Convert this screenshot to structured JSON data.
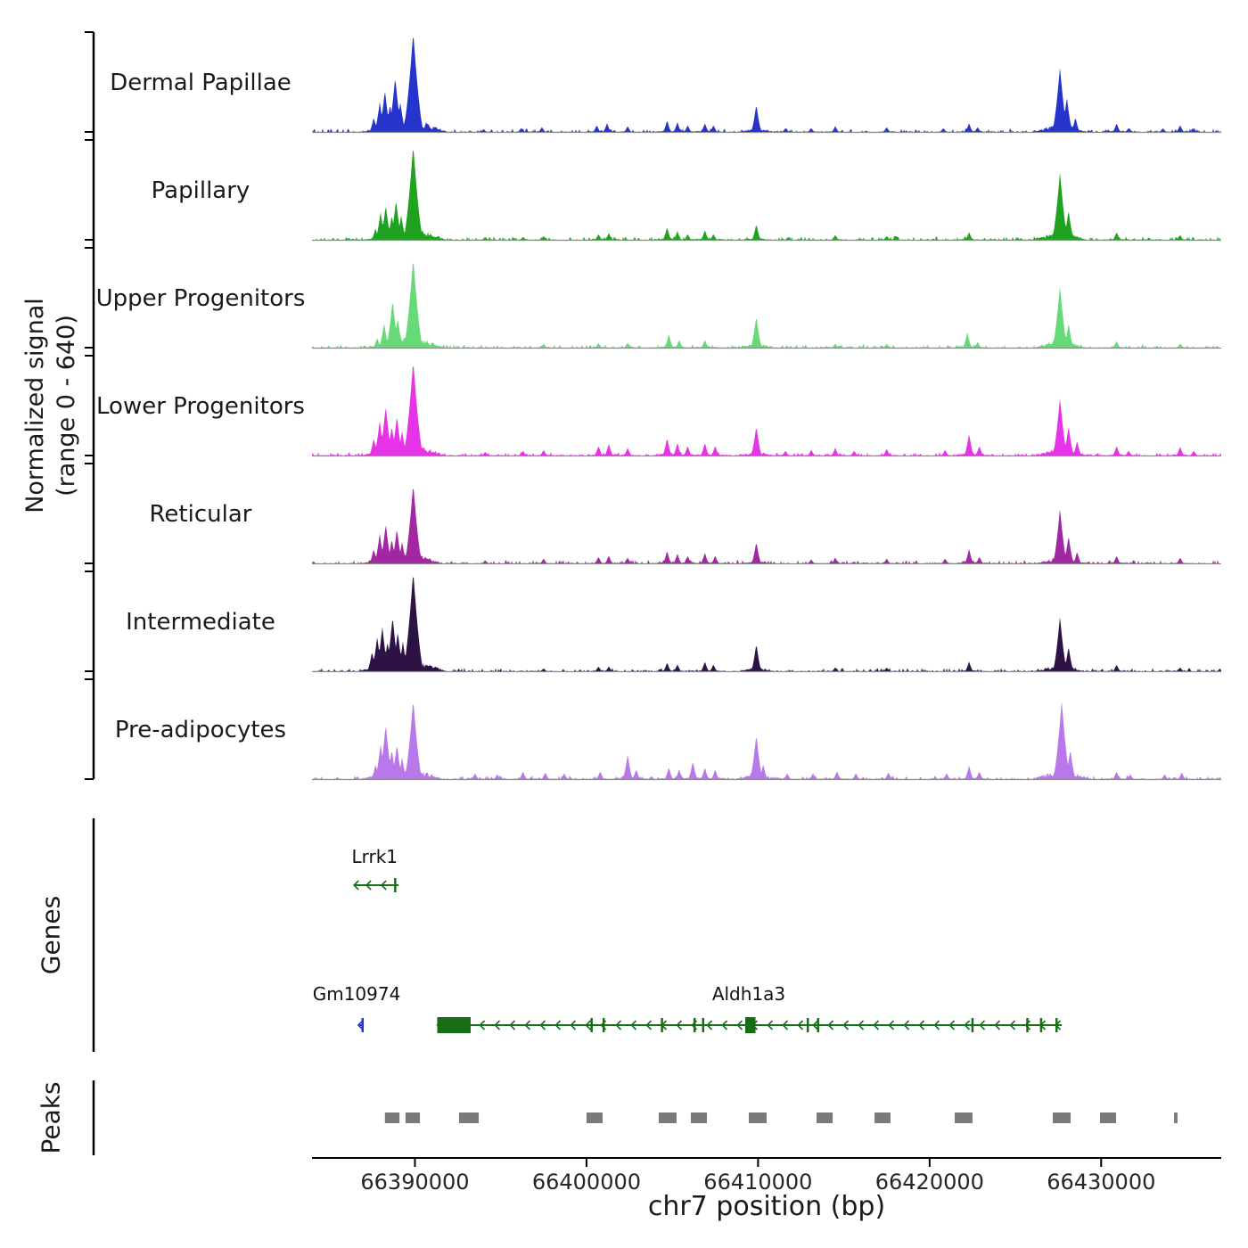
{
  "y_axis": {
    "line1": "Normalized signal",
    "line2": "(range 0 - 640)",
    "range": [
      0,
      640
    ]
  },
  "sections": {
    "genes": "Genes",
    "peaks": "Peaks"
  },
  "x_axis": {
    "title": "chr7 position (bp)",
    "ticks": [
      66390000,
      66400000,
      66410000,
      66420000,
      66430000
    ],
    "range": [
      66384000,
      66437000
    ]
  },
  "chart_data": {
    "type": "area",
    "subtype": "genome-signal-tracks",
    "xlabel": "chr7 position (bp)",
    "ylabel": "Normalized signal (range 0 - 640)",
    "x_range": [
      66384000,
      66437000
    ],
    "y_range": [
      0,
      640
    ],
    "height_unit": "fraction_of_ymax",
    "tracks": [
      {
        "name": "Dermal Papillae",
        "color": "#2534cd",
        "peaks": [
          [
            66387600,
            0.15
          ],
          [
            66387950,
            0.3
          ],
          [
            66388250,
            0.42
          ],
          [
            66388550,
            0.28
          ],
          [
            66388850,
            0.55
          ],
          [
            66389150,
            0.3
          ],
          [
            66389500,
            0.2
          ],
          [
            66389900,
            1.0
          ],
          [
            66390250,
            0.1
          ],
          [
            66394000,
            0.03
          ],
          [
            66396200,
            0.04
          ],
          [
            66397400,
            0.05
          ],
          [
            66400600,
            0.07
          ],
          [
            66401200,
            0.09
          ],
          [
            66402400,
            0.06
          ],
          [
            66404700,
            0.12
          ],
          [
            66405300,
            0.1
          ],
          [
            66405900,
            0.07
          ],
          [
            66406900,
            0.09
          ],
          [
            66407400,
            0.07
          ],
          [
            66409900,
            0.28
          ],
          [
            66411600,
            0.04
          ],
          [
            66413100,
            0.04
          ],
          [
            66414500,
            0.06
          ],
          [
            66417500,
            0.05
          ],
          [
            66420800,
            0.04
          ],
          [
            66422300,
            0.09
          ],
          [
            66422800,
            0.05
          ],
          [
            66427600,
            0.65
          ],
          [
            66428000,
            0.35
          ],
          [
            66428500,
            0.15
          ],
          [
            66430900,
            0.09
          ],
          [
            66431600,
            0.04
          ],
          [
            66433600,
            0.04
          ],
          [
            66434600,
            0.07
          ],
          [
            66435400,
            0.04
          ]
        ]
      },
      {
        "name": "Papillary",
        "color": "#1fa21f",
        "peaks": [
          [
            66387700,
            0.12
          ],
          [
            66388000,
            0.28
          ],
          [
            66388300,
            0.35
          ],
          [
            66388650,
            0.25
          ],
          [
            66388900,
            0.4
          ],
          [
            66389200,
            0.25
          ],
          [
            66389900,
            0.95
          ],
          [
            66390200,
            0.1
          ],
          [
            66394100,
            0.03
          ],
          [
            66396300,
            0.03
          ],
          [
            66397500,
            0.04
          ],
          [
            66400700,
            0.06
          ],
          [
            66401300,
            0.07
          ],
          [
            66404700,
            0.13
          ],
          [
            66405300,
            0.09
          ],
          [
            66405900,
            0.06
          ],
          [
            66406900,
            0.1
          ],
          [
            66407400,
            0.06
          ],
          [
            66409900,
            0.16
          ],
          [
            66414500,
            0.05
          ],
          [
            66417500,
            0.04
          ],
          [
            66422300,
            0.08
          ],
          [
            66427600,
            0.68
          ],
          [
            66428100,
            0.3
          ],
          [
            66430900,
            0.08
          ],
          [
            66434600,
            0.05
          ]
        ]
      },
      {
        "name": "Upper Progenitors",
        "color": "#67da78",
        "peaks": [
          [
            66387800,
            0.1
          ],
          [
            66388200,
            0.25
          ],
          [
            66388700,
            0.48
          ],
          [
            66389000,
            0.3
          ],
          [
            66389900,
            0.9
          ],
          [
            66397500,
            0.04
          ],
          [
            66400700,
            0.05
          ],
          [
            66402400,
            0.05
          ],
          [
            66404800,
            0.14
          ],
          [
            66405400,
            0.08
          ],
          [
            66406900,
            0.08
          ],
          [
            66409900,
            0.32
          ],
          [
            66414500,
            0.04
          ],
          [
            66417500,
            0.04
          ],
          [
            66422200,
            0.16
          ],
          [
            66422800,
            0.06
          ],
          [
            66427600,
            0.62
          ],
          [
            66428100,
            0.25
          ],
          [
            66430900,
            0.07
          ],
          [
            66434600,
            0.04
          ]
        ]
      },
      {
        "name": "Lower Progenitors",
        "color": "#e733e7",
        "peaks": [
          [
            66387600,
            0.18
          ],
          [
            66387950,
            0.35
          ],
          [
            66388300,
            0.5
          ],
          [
            66388650,
            0.3
          ],
          [
            66388950,
            0.4
          ],
          [
            66389250,
            0.25
          ],
          [
            66389900,
            0.95
          ],
          [
            66390300,
            0.12
          ],
          [
            66394100,
            0.04
          ],
          [
            66396300,
            0.05
          ],
          [
            66397500,
            0.06
          ],
          [
            66400700,
            0.1
          ],
          [
            66401300,
            0.12
          ],
          [
            66402400,
            0.08
          ],
          [
            66404700,
            0.18
          ],
          [
            66405300,
            0.13
          ],
          [
            66405900,
            0.1
          ],
          [
            66406900,
            0.13
          ],
          [
            66407500,
            0.1
          ],
          [
            66409900,
            0.3
          ],
          [
            66411600,
            0.05
          ],
          [
            66413100,
            0.06
          ],
          [
            66414500,
            0.08
          ],
          [
            66415600,
            0.05
          ],
          [
            66417500,
            0.07
          ],
          [
            66420900,
            0.06
          ],
          [
            66422300,
            0.22
          ],
          [
            66422900,
            0.1
          ],
          [
            66427600,
            0.58
          ],
          [
            66428100,
            0.3
          ],
          [
            66428600,
            0.15
          ],
          [
            66430900,
            0.1
          ],
          [
            66431600,
            0.05
          ],
          [
            66434600,
            0.09
          ],
          [
            66435400,
            0.05
          ]
        ]
      },
      {
        "name": "Reticular",
        "color": "#a227a2",
        "peaks": [
          [
            66387600,
            0.15
          ],
          [
            66387950,
            0.3
          ],
          [
            66388300,
            0.4
          ],
          [
            66388650,
            0.25
          ],
          [
            66388950,
            0.35
          ],
          [
            66389250,
            0.22
          ],
          [
            66389900,
            0.8
          ],
          [
            66390300,
            0.1
          ],
          [
            66394100,
            0.03
          ],
          [
            66397500,
            0.05
          ],
          [
            66400700,
            0.07
          ],
          [
            66401300,
            0.08
          ],
          [
            66402400,
            0.06
          ],
          [
            66404700,
            0.13
          ],
          [
            66405300,
            0.1
          ],
          [
            66405900,
            0.08
          ],
          [
            66406900,
            0.11
          ],
          [
            66407500,
            0.08
          ],
          [
            66409900,
            0.22
          ],
          [
            66413100,
            0.04
          ],
          [
            66414500,
            0.06
          ],
          [
            66417500,
            0.05
          ],
          [
            66420900,
            0.05
          ],
          [
            66422300,
            0.15
          ],
          [
            66422900,
            0.07
          ],
          [
            66427600,
            0.55
          ],
          [
            66428100,
            0.28
          ],
          [
            66428600,
            0.12
          ],
          [
            66430900,
            0.08
          ],
          [
            66434600,
            0.06
          ]
        ]
      },
      {
        "name": "Intermediate",
        "color": "#2c1245",
        "peaks": [
          [
            66387500,
            0.2
          ],
          [
            66387800,
            0.35
          ],
          [
            66388100,
            0.45
          ],
          [
            66388400,
            0.3
          ],
          [
            66388700,
            0.55
          ],
          [
            66389000,
            0.4
          ],
          [
            66389300,
            0.3
          ],
          [
            66389900,
            1.0
          ],
          [
            66390200,
            0.15
          ],
          [
            66397500,
            0.03
          ],
          [
            66400700,
            0.05
          ],
          [
            66401300,
            0.05
          ],
          [
            66404700,
            0.09
          ],
          [
            66405300,
            0.07
          ],
          [
            66406900,
            0.1
          ],
          [
            66407400,
            0.07
          ],
          [
            66409900,
            0.28
          ],
          [
            66414500,
            0.04
          ],
          [
            66417500,
            0.04
          ],
          [
            66422300,
            0.1
          ],
          [
            66427600,
            0.55
          ],
          [
            66428100,
            0.25
          ],
          [
            66430900,
            0.07
          ],
          [
            66434600,
            0.04
          ]
        ]
      },
      {
        "name": "Pre-adipocytes",
        "color": "#b878ea",
        "peaks": [
          [
            66387700,
            0.15
          ],
          [
            66388000,
            0.35
          ],
          [
            66388300,
            0.55
          ],
          [
            66388650,
            0.3
          ],
          [
            66388950,
            0.35
          ],
          [
            66389250,
            0.22
          ],
          [
            66389900,
            0.8
          ],
          [
            66393500,
            0.06
          ],
          [
            66394800,
            0.05
          ],
          [
            66396300,
            0.08
          ],
          [
            66397600,
            0.07
          ],
          [
            66398700,
            0.06
          ],
          [
            66400800,
            0.08
          ],
          [
            66402400,
            0.25
          ],
          [
            66402900,
            0.1
          ],
          [
            66404800,
            0.12
          ],
          [
            66405400,
            0.1
          ],
          [
            66406200,
            0.18
          ],
          [
            66406900,
            0.12
          ],
          [
            66407500,
            0.1
          ],
          [
            66409900,
            0.45
          ],
          [
            66410300,
            0.15
          ],
          [
            66411700,
            0.06
          ],
          [
            66413200,
            0.06
          ],
          [
            66414600,
            0.08
          ],
          [
            66415700,
            0.06
          ],
          [
            66417600,
            0.07
          ],
          [
            66421000,
            0.06
          ],
          [
            66422300,
            0.14
          ],
          [
            66422900,
            0.08
          ],
          [
            66427700,
            0.78
          ],
          [
            66428200,
            0.3
          ],
          [
            66430900,
            0.08
          ],
          [
            66431700,
            0.05
          ],
          [
            66433700,
            0.05
          ],
          [
            66434700,
            0.07
          ]
        ]
      }
    ],
    "genes": [
      {
        "name": "Lrrk1",
        "color": "#176e17",
        "strand": "-",
        "row": 0,
        "start": 66386450,
        "end": 66389050,
        "boxes": [],
        "ticks": [
          66388850
        ],
        "label_anchor": 66387650
      },
      {
        "name": "Gm10974",
        "color": "#2534cd",
        "strand": "-",
        "row": 1,
        "start": 66386700,
        "end": 66386980,
        "boxes": [],
        "ticks": [
          66386950
        ],
        "label_anchor": 66386600
      },
      {
        "name": "Aldh1a3",
        "color": "#176e17",
        "strand": "-",
        "row": 1,
        "start": 66391300,
        "end": 66427700,
        "boxes": [
          [
            66391300,
            66393250
          ],
          [
            66409250,
            66409850
          ]
        ],
        "ticks": [
          66400300,
          66401000,
          66404400,
          66406300,
          66406800,
          66412900,
          66413500,
          66422500,
          66425700,
          66426500,
          66427400
        ],
        "label_anchor": 66409460
      }
    ],
    "peak_regions": [
      [
        66388250,
        66389100
      ],
      [
        66389450,
        66390290
      ],
      [
        66392570,
        66393720
      ],
      [
        66400000,
        66400940
      ],
      [
        66404210,
        66405250
      ],
      [
        66406080,
        66407020
      ],
      [
        66409460,
        66410500
      ],
      [
        66413410,
        66414350
      ],
      [
        66416790,
        66417720
      ],
      [
        66421460,
        66422500
      ],
      [
        66427180,
        66428220
      ],
      [
        66429930,
        66430870
      ],
      [
        66434250,
        66434450
      ]
    ],
    "colors": {
      "peak_gray": "#7a7a7a",
      "baseline_gray": "#8c8c8c",
      "axis_black": "#000000"
    }
  }
}
